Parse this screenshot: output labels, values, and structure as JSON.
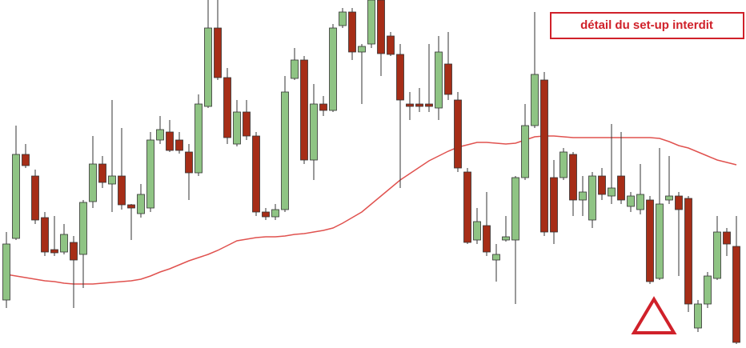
{
  "chart_data": {
    "type": "candlestick",
    "annotation": "détail du set-up interdit",
    "ylim": [
      0,
      435
    ],
    "up_color": "#8fc484",
    "down_color": "#a62d17",
    "ma_color": "#e0524f",
    "open": [
      60,
      137,
      242,
      215,
      163,
      123,
      120,
      132,
      117,
      183,
      230,
      205,
      215,
      179,
      168,
      175,
      260,
      270,
      260,
      245,
      219,
      302,
      400,
      338,
      255,
      295,
      265,
      170,
      164,
      173,
      337,
      360,
      235,
      305,
      297,
      403,
      420,
      370,
      380,
      435,
      390,
      367,
      305,
      305,
      305,
      300,
      355,
      310,
      220,
      135,
      153,
      110,
      135,
      135,
      213,
      278,
      335,
      213,
      213,
      242,
      185,
      160,
      215,
      190,
      215,
      177,
      173,
      185,
      87,
      185,
      190,
      187,
      25,
      55,
      87,
      145,
      127
    ],
    "high": [
      145,
      278,
      255,
      223,
      170,
      165,
      155,
      140,
      185,
      265,
      240,
      310,
      275,
      180,
      205,
      270,
      290,
      285,
      270,
      255,
      317,
      435,
      435,
      350,
      310,
      310,
      270,
      175,
      180,
      340,
      375,
      365,
      330,
      315,
      405,
      425,
      425,
      380,
      435,
      435,
      395,
      380,
      320,
      325,
      380,
      390,
      395,
      320,
      225,
      175,
      195,
      130,
      165,
      215,
      305,
      420,
      345,
      235,
      250,
      245,
      215,
      220,
      225,
      280,
      270,
      195,
      230,
      190,
      250,
      240,
      195,
      190,
      60,
      95,
      165,
      150,
      165
    ],
    "low": [
      50,
      135,
      225,
      155,
      115,
      115,
      117,
      50,
      75,
      175,
      200,
      170,
      173,
      135,
      163,
      170,
      255,
      245,
      243,
      185,
      215,
      300,
      335,
      255,
      252,
      260,
      165,
      160,
      160,
      170,
      335,
      230,
      210,
      290,
      295,
      400,
      360,
      305,
      375,
      340,
      365,
      200,
      285,
      295,
      295,
      285,
      310,
      220,
      130,
      130,
      115,
      83,
      133,
      55,
      210,
      275,
      140,
      130,
      210,
      165,
      165,
      150,
      185,
      180,
      180,
      170,
      167,
      80,
      85,
      180,
      90,
      45,
      20,
      50,
      85,
      115,
      5
    ],
    "close": [
      130,
      242,
      228,
      160,
      120,
      119,
      142,
      110,
      182,
      230,
      207,
      215,
      179,
      175,
      192,
      260,
      273,
      247,
      247,
      219,
      305,
      400,
      338,
      263,
      295,
      265,
      170,
      164,
      173,
      320,
      360,
      235,
      305,
      297,
      400,
      420,
      370,
      377,
      435,
      368,
      367,
      310,
      302,
      302,
      302,
      370,
      317,
      225,
      132,
      158,
      120,
      117,
      139,
      213,
      278,
      342,
      145,
      145,
      245,
      185,
      195,
      215,
      192,
      200,
      185,
      190,
      192,
      83,
      180,
      190,
      173,
      55,
      55,
      90,
      145,
      130,
      7
    ],
    "moving_average": [
      92,
      90,
      88,
      86,
      84,
      83,
      81,
      80,
      80,
      80,
      81,
      82,
      83,
      84,
      86,
      90,
      95,
      99,
      104,
      109,
      113,
      117,
      122,
      128,
      134,
      136,
      138,
      139,
      139,
      140,
      142,
      143,
      145,
      147,
      150,
      156,
      163,
      170,
      180,
      190,
      200,
      210,
      218,
      226,
      234,
      240,
      246,
      251,
      254,
      257,
      257,
      256,
      255,
      256,
      260,
      264,
      265,
      265,
      264,
      263,
      263,
      263,
      263,
      263,
      263,
      263,
      263,
      263,
      262,
      258,
      253,
      250,
      245,
      240,
      235,
      232,
      229
    ]
  }
}
